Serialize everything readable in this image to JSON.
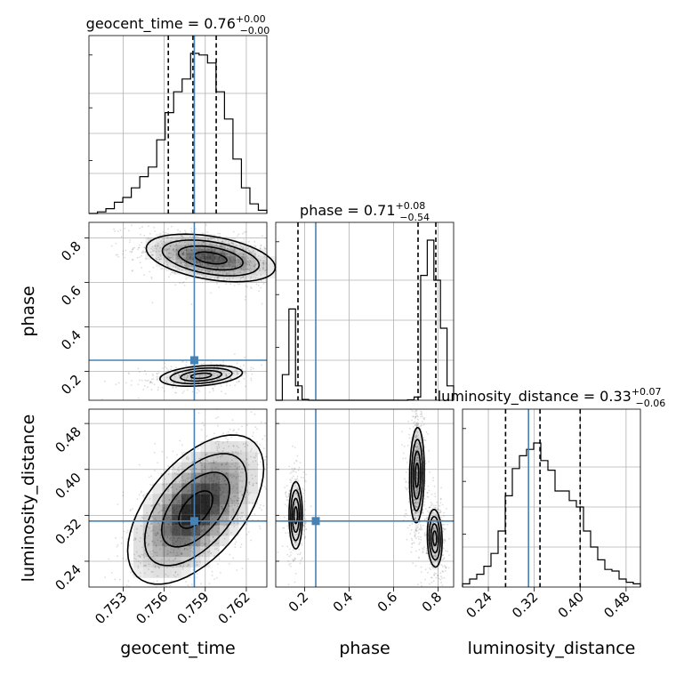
{
  "chart_data": {
    "type": "corner",
    "parameters": [
      "geocent_time",
      "phase",
      "luminosity_distance"
    ],
    "axis_labels": [
      "geocent_time",
      "phase",
      "luminosity_distance"
    ],
    "titles": [
      {
        "text": "geocent_time = 0.76",
        "sup": "+0.00",
        "sub": "−0.00"
      },
      {
        "text": "phase = 0.71",
        "sup": "+0.08",
        "sub": "−0.54"
      },
      {
        "text": "luminosity_distance = 0.33",
        "sup": "+0.07",
        "sub": "−0.06"
      }
    ],
    "ranges": [
      [
        0.7505,
        0.7635
      ],
      [
        0.07,
        0.87
      ],
      [
        0.195,
        0.505
      ]
    ],
    "ticks": [
      {
        "values": [
          0.753,
          0.756,
          0.759,
          0.762
        ],
        "labels": [
          "0.753",
          "0.756",
          "0.759",
          "0.762"
        ]
      },
      {
        "values": [
          0.2,
          0.4,
          0.6,
          0.8
        ],
        "labels": [
          "0.2",
          "0.4",
          "0.6",
          "0.8"
        ]
      },
      {
        "values": [
          0.24,
          0.32,
          0.4,
          0.48
        ],
        "labels": [
          "0.24",
          "0.32",
          "0.40",
          "0.48"
        ]
      }
    ],
    "truths": [
      0.7582,
      0.25,
      0.31
    ],
    "quantiles": [
      [
        0.7563,
        0.7581,
        0.7598
      ],
      [
        0.17,
        0.71,
        0.79
      ],
      [
        0.27,
        0.33,
        0.4
      ]
    ],
    "histograms": [
      {
        "counts": [
          0,
          0.01,
          0.03,
          0.07,
          0.1,
          0.16,
          0.23,
          0.29,
          0.46,
          0.63,
          0.76,
          0.84,
          1.0,
          0.99,
          0.94,
          0.76,
          0.59,
          0.34,
          0.16,
          0.06,
          0.02
        ]
      },
      {
        "counts": [
          0,
          0.16,
          0.57,
          0.09,
          0.005,
          0,
          0,
          0,
          0,
          0,
          0,
          0,
          0,
          0,
          0,
          0,
          0,
          0,
          0,
          0,
          0.003,
          0.02,
          0.78,
          1.0,
          0.75,
          0.45,
          0.09
        ]
      },
      {
        "counts": [
          0.02,
          0.05,
          0.08,
          0.13,
          0.21,
          0.35,
          0.57,
          0.74,
          0.82,
          0.86,
          0.9,
          0.79,
          0.73,
          0.6,
          0.6,
          0.54,
          0.5,
          0.35,
          0.25,
          0.17,
          0.11,
          0.1,
          0.05,
          0.03,
          0.02
        ]
      }
    ],
    "modes": [
      {
        "pair": [
          0,
          1
        ],
        "components": [
          {
            "mx": 0.7594,
            "my": 0.71,
            "sx": 0.0022,
            "sy": 0.05,
            "w": 0.75,
            "rho": -0.4
          },
          {
            "mx": 0.7587,
            "my": 0.18,
            "sx": 0.0018,
            "sy": 0.028,
            "w": 0.25,
            "rho": 0.3
          }
        ]
      },
      {
        "pair": [
          0,
          2
        ],
        "components": [
          {
            "mx": 0.7583,
            "my": 0.33,
            "sx": 0.0021,
            "sy": 0.055,
            "w": 1.0,
            "rho": 0.55
          }
        ]
      },
      {
        "pair": [
          1,
          2
        ],
        "components": [
          {
            "mx": 0.705,
            "my": 0.39,
            "sx": 0.018,
            "sy": 0.045,
            "w": 0.45,
            "rho": 0.1
          },
          {
            "mx": 0.785,
            "my": 0.28,
            "sx": 0.02,
            "sy": 0.03,
            "w": 0.3,
            "rho": -0.1
          },
          {
            "mx": 0.16,
            "my": 0.32,
            "sx": 0.018,
            "sy": 0.035,
            "w": 0.25,
            "rho": 0
          }
        ]
      }
    ],
    "colors": {
      "truth": "#4682b4",
      "contour": "#000000",
      "grid": "#b0b0b0"
    }
  }
}
